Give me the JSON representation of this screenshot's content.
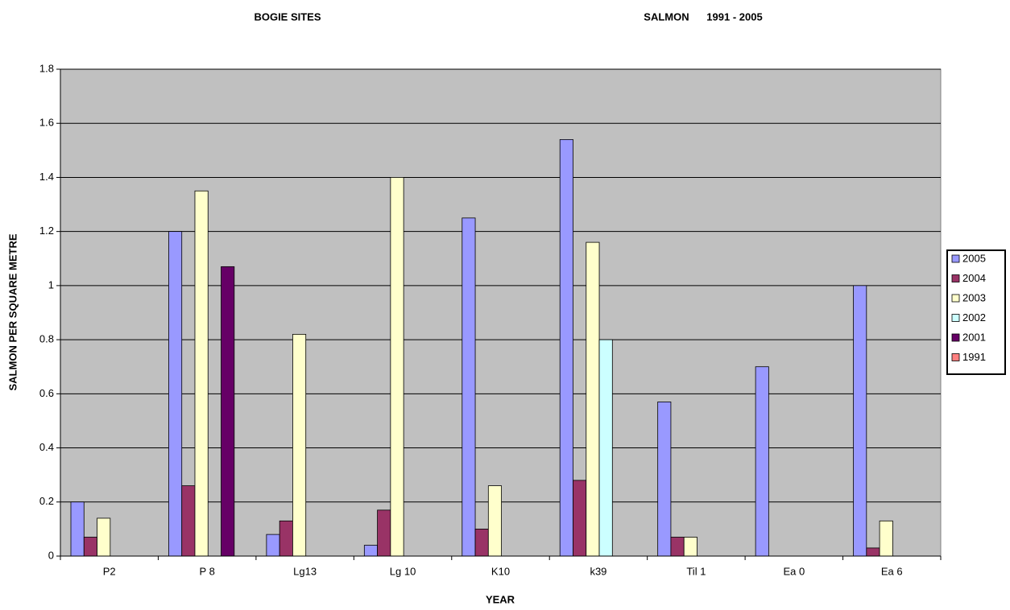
{
  "chart_data": {
    "type": "bar",
    "title": "BOGIE SITES",
    "subtitle": "SALMON      1991 - 2005",
    "x_label": "YEAR",
    "y_label": "SALMON PER SQUARE METRE",
    "categories": [
      "P2",
      "P 8",
      "Lg13",
      "Lg 10",
      "K10",
      "k39",
      "Til 1",
      "Ea 0",
      "Ea 6"
    ],
    "series": [
      {
        "name": "2005",
        "color": "#9999ff",
        "values": [
          0.2,
          1.2,
          0.08,
          0.04,
          1.25,
          1.54,
          0.57,
          0.7,
          1.0
        ]
      },
      {
        "name": "2004",
        "color": "#993366",
        "values": [
          0.07,
          0.26,
          0.13,
          0.17,
          0.1,
          0.28,
          0.07,
          null,
          0.03
        ]
      },
      {
        "name": "2003",
        "color": "#ffffcc",
        "values": [
          0.14,
          1.35,
          0.82,
          1.4,
          0.26,
          1.16,
          0.07,
          null,
          0.13
        ]
      },
      {
        "name": "2002",
        "color": "#ccffff",
        "values": [
          null,
          null,
          null,
          null,
          null,
          0.8,
          null,
          null,
          null
        ]
      },
      {
        "name": "2001",
        "color": "#660066",
        "values": [
          null,
          1.07,
          null,
          null,
          null,
          null,
          null,
          null,
          null
        ]
      },
      {
        "name": "1991",
        "color": "#ff8080",
        "values": [
          null,
          null,
          null,
          null,
          null,
          null,
          null,
          null,
          null
        ]
      }
    ],
    "ylim": [
      0,
      1.8
    ],
    "yticks": [
      0,
      0.2,
      0.4,
      0.6,
      0.8,
      1,
      1.2,
      1.4,
      1.6,
      1.8
    ],
    "grid": true,
    "plot_background": "#c0c0c0",
    "legend": "right"
  }
}
